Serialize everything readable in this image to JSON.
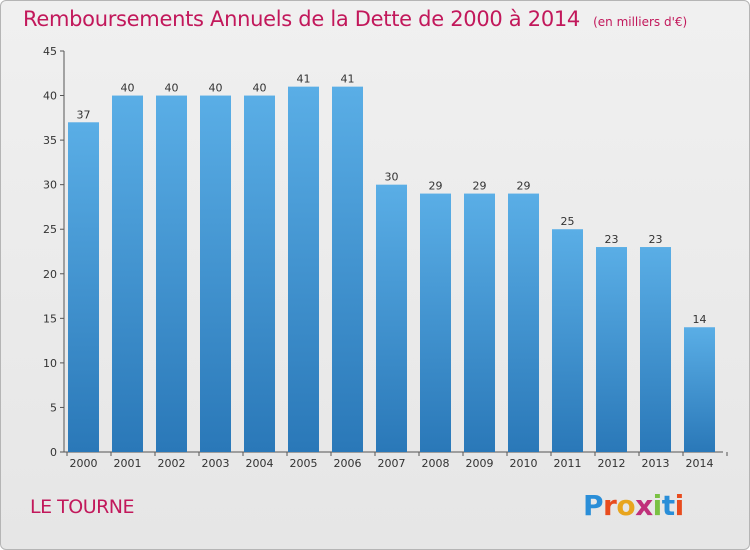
{
  "chart_data": {
    "type": "bar",
    "title": "Remboursements Annuels de la Dette de 2000 à 2014",
    "subtitle": "(en milliers d'€)",
    "categories": [
      "2000",
      "2001",
      "2002",
      "2003",
      "2004",
      "2005",
      "2006",
      "2007",
      "2008",
      "2009",
      "2010",
      "2011",
      "2012",
      "2013",
      "2014"
    ],
    "values": [
      37,
      40,
      40,
      40,
      40,
      41,
      41,
      30,
      29,
      29,
      29,
      25,
      23,
      23,
      14
    ],
    "xlabel": "",
    "ylabel": "",
    "ylim": [
      0,
      45
    ],
    "yticks": [
      0,
      5,
      10,
      15,
      20,
      25,
      30,
      35,
      40,
      45
    ],
    "grid": false,
    "bar_color": "#5aaee6",
    "bar_color_dark": "#2a78b8"
  },
  "footer": {
    "commune": "LE TOURNE",
    "brand_letters": [
      "P",
      "r",
      "o",
      "x",
      "i",
      "t",
      "i"
    ],
    "brand_colors": [
      "#2a8ed8",
      "#e84c1e",
      "#e8a51e",
      "#c0307a",
      "#7ac143",
      "#2a8ed8",
      "#e84c1e"
    ]
  }
}
